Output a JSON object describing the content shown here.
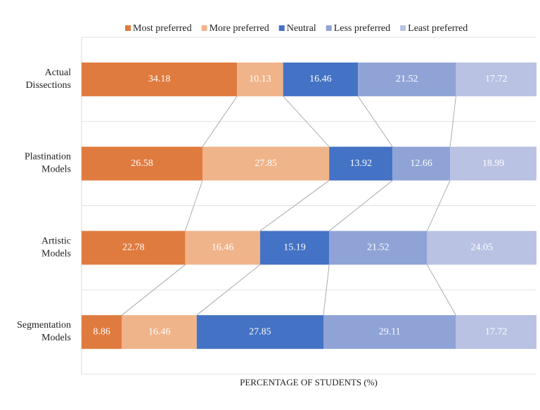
{
  "chart_data": {
    "type": "bar",
    "orientation": "horizontal",
    "stacked": true,
    "x_label": "PERCENTAGE OF STUDENTS (%)",
    "categories": [
      "Actual Dissections",
      "Plastination Models",
      "Artistic Models",
      "Segmentation Models"
    ],
    "series": [
      {
        "name": "Most preferred",
        "color": "#e07b3f",
        "values": [
          34.18,
          26.58,
          22.78,
          8.86
        ]
      },
      {
        "name": "More preferred",
        "color": "#f0b48a",
        "values": [
          10.13,
          27.85,
          16.46,
          16.46
        ]
      },
      {
        "name": "Neutral",
        "color": "#4472c4",
        "values": [
          16.46,
          13.92,
          15.19,
          27.85
        ]
      },
      {
        "name": "Less preferred",
        "color": "#8fa3d6",
        "values": [
          21.52,
          12.66,
          21.52,
          29.11
        ]
      },
      {
        "name": "Least preferred",
        "color": "#b9c2e3",
        "values": [
          17.72,
          18.99,
          24.05,
          17.72
        ]
      }
    ],
    "xlim": [
      0,
      100
    ],
    "grid": true,
    "legend": "top"
  }
}
